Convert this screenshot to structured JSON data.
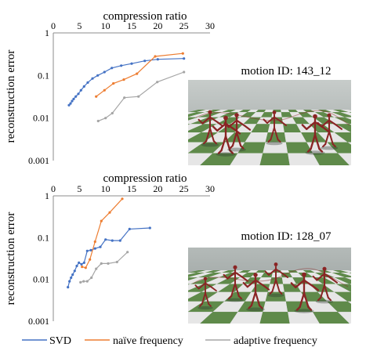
{
  "colors": {
    "svd": "#4472C4",
    "naive": "#ED7D31",
    "adaptive": "#A5A5A5",
    "sky": "#b9c0bf",
    "floor_green": "#5f8a4a",
    "floor_white": "#e6e6e6",
    "figure": "#8a2424"
  },
  "legend": [
    "SVD",
    "naïve frequency",
    "adaptive frequency"
  ],
  "panels": [
    {
      "motion_label": "motion ID: 143_12"
    },
    {
      "motion_label": "motion ID: 128_07"
    }
  ],
  "chart_data": [
    {
      "type": "scatter",
      "title": "",
      "xlabel": "compression ratio",
      "ylabel": "reconstruction error",
      "xlim": [
        0,
        30
      ],
      "x_ticks": [
        "0",
        "5",
        "10",
        "15",
        "20",
        "25",
        "30"
      ],
      "x_axis_position": "top",
      "ylim": [
        0.001,
        1
      ],
      "y_scale": "log",
      "y_ticks": [
        "1",
        "0.1",
        "0.01",
        "0.001"
      ],
      "legend_position": "bottom",
      "series": [
        {
          "name": "SVD",
          "color": "#4472C4",
          "x": [
            3.0,
            3.3,
            3.6,
            3.9,
            4.3,
            4.8,
            5.3,
            5.9,
            6.6,
            7.5,
            8.5,
            9.8,
            11.2,
            13.0,
            15.0,
            17.5,
            20.0,
            25.0
          ],
          "y": [
            0.02,
            0.022,
            0.025,
            0.028,
            0.032,
            0.037,
            0.045,
            0.055,
            0.068,
            0.085,
            0.1,
            0.12,
            0.15,
            0.17,
            0.19,
            0.22,
            0.24,
            0.25
          ]
        },
        {
          "name": "naïve frequency",
          "color": "#ED7D31",
          "x": [
            8.2,
            9.8,
            11.5,
            13.5,
            16.0,
            19.5,
            24.8
          ],
          "y": [
            0.032,
            0.045,
            0.065,
            0.08,
            0.11,
            0.28,
            0.33
          ]
        },
        {
          "name": "adaptive frequency",
          "color": "#A5A5A5",
          "x": [
            8.6,
            10.0,
            11.3,
            13.6,
            16.3,
            19.9,
            25.0
          ],
          "y": [
            0.0085,
            0.01,
            0.013,
            0.03,
            0.032,
            0.07,
            0.12
          ]
        }
      ]
    },
    {
      "type": "scatter",
      "title": "",
      "xlabel": "compression ratio",
      "ylabel": "reconstruction  error",
      "xlim": [
        0,
        30
      ],
      "x_ticks": [
        "0",
        "5",
        "10",
        "15",
        "20",
        "25",
        "30"
      ],
      "x_axis_position": "top",
      "ylim": [
        0.001,
        1
      ],
      "y_scale": "log",
      "y_ticks": [
        "1",
        "0.1",
        "0.01",
        "0.001"
      ],
      "legend_position": "bottom",
      "series": [
        {
          "name": "SVD",
          "color": "#4472C4",
          "x": [
            2.8,
            3.1,
            3.4,
            3.7,
            4.1,
            4.5,
            4.9,
            5.4,
            5.9,
            6.5,
            7.2,
            8.0,
            9.0,
            10.0,
            11.3,
            12.8,
            14.6,
            18.5
          ],
          "y": [
            0.0065,
            0.009,
            0.011,
            0.013,
            0.016,
            0.021,
            0.025,
            0.023,
            0.025,
            0.048,
            0.05,
            0.055,
            0.06,
            0.09,
            0.085,
            0.085,
            0.16,
            0.17
          ]
        },
        {
          "name": "naïve frequency",
          "color": "#ED7D31",
          "x": [
            5.5,
            6.2,
            7.0,
            8.0,
            9.2,
            10.8,
            13.2
          ],
          "y": [
            0.02,
            0.019,
            0.03,
            0.08,
            0.25,
            0.4,
            0.85
          ]
        },
        {
          "name": "adaptive frequency",
          "color": "#A5A5A5",
          "x": [
            5.2,
            5.8,
            6.5,
            7.3,
            8.2,
            9.2,
            10.5,
            12.2,
            14.2
          ],
          "y": [
            0.0085,
            0.009,
            0.009,
            0.011,
            0.018,
            0.024,
            0.024,
            0.026,
            0.045
          ]
        }
      ]
    }
  ]
}
